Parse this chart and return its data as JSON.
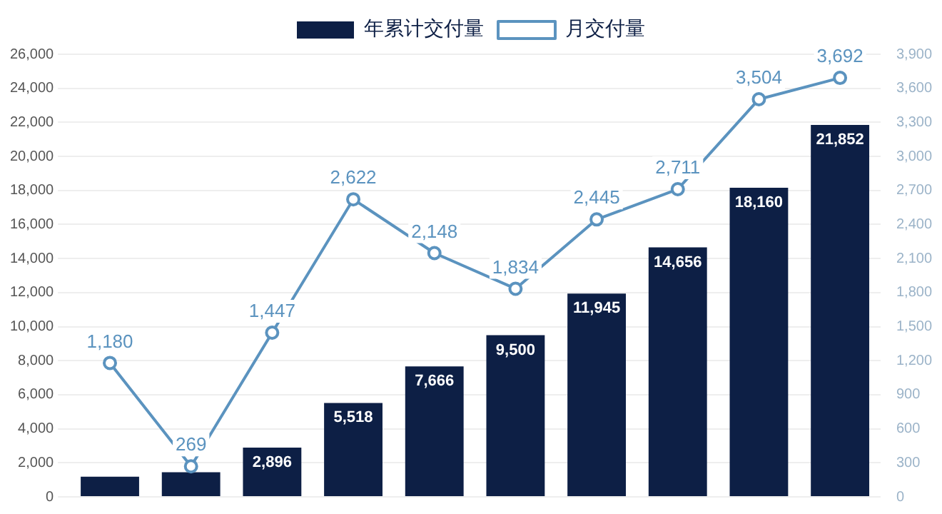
{
  "chart_data": {
    "type": "bar",
    "categories": [
      null,
      null,
      null,
      null,
      null,
      null,
      null,
      null,
      null,
      null
    ],
    "series": [
      {
        "name": "年累计交付量",
        "color": "#0d1f45",
        "values": [
          1180,
          1449,
          2896,
          5518,
          7666,
          9500,
          11945,
          14656,
          18160,
          21852
        ],
        "value_labels": [
          null,
          null,
          "2,896",
          "5,518",
          "7,666",
          "9,500",
          "11,945",
          "14,656",
          "18,160",
          "21,852"
        ]
      },
      {
        "name": "月交付量",
        "type": "line",
        "axis": "y2",
        "color": "#5b93bf",
        "values": [
          1180,
          269,
          1447,
          2622,
          2148,
          1834,
          2445,
          2711,
          3504,
          3692
        ],
        "value_labels": [
          "1,180",
          "269",
          "1,447",
          "2,622",
          "2,148",
          "1,834",
          "2,445",
          "2,711",
          "3,504",
          "3,692"
        ]
      }
    ],
    "ylim": [
      0,
      26000
    ],
    "yticks": [
      {
        "value": 0,
        "label": "0"
      },
      {
        "value": 2000,
        "label": "2,000"
      },
      {
        "value": 4000,
        "label": "4,000"
      },
      {
        "value": 6000,
        "label": "6,000"
      },
      {
        "value": 8000,
        "label": "8,000"
      },
      {
        "value": 10000,
        "label": "10,000"
      },
      {
        "value": 12000,
        "label": "12,000"
      },
      {
        "value": 14000,
        "label": "14,000"
      },
      {
        "value": 16000,
        "label": "16,000"
      },
      {
        "value": 18000,
        "label": "18,000"
      },
      {
        "value": 20000,
        "label": "20,000"
      },
      {
        "value": 22000,
        "label": "22,000"
      },
      {
        "value": 24000,
        "label": "24,000"
      },
      {
        "value": 26000,
        "label": "26,000"
      }
    ],
    "y2lim": [
      0,
      3900
    ],
    "y2ticks": [
      0,
      {
        "value": 300,
        "label": "300"
      },
      {
        "value": 600,
        "label": "600"
      },
      {
        "value": 900,
        "label": "900"
      },
      {
        "value": 1200,
        "label": "1,200"
      },
      {
        "value": 1500,
        "label": "1,500"
      },
      {
        "value": 1800,
        "label": "1,800"
      },
      {
        "value": 2100,
        "label": "2,100"
      },
      {
        "value": 2400,
        "label": "2,400"
      },
      {
        "value": 2700,
        "label": "2,700"
      },
      {
        "value": 3000,
        "label": "3,000"
      },
      {
        "value": 3300,
        "label": "3,300"
      },
      {
        "value": 3600,
        "label": "3,600"
      },
      {
        "value": 3900,
        "label": "3,900"
      }
    ],
    "grid": "y",
    "legend": "top",
    "marker": "circle",
    "line_style": "solid"
  }
}
